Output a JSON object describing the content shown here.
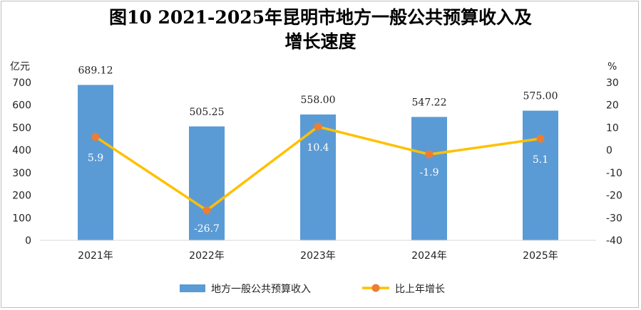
{
  "title_line1": "图10 2021-2025年昆明市地方一般公共预算收入及",
  "title_line2": "增长速度",
  "chart_data": {
    "type": "bar",
    "categories": [
      "2021年",
      "2022年",
      "2023年",
      "2024年",
      "2025年"
    ],
    "series": [
      {
        "name": "地方一般公共预算收入",
        "type": "bar",
        "axis": "left",
        "color": "#5b9bd5",
        "values": [
          689.12,
          505.25,
          558.0,
          547.22,
          575.0
        ],
        "labels": [
          "689.12",
          "505.25",
          "558.00",
          "547.22",
          "575.00"
        ]
      },
      {
        "name": "比上年增长",
        "type": "line",
        "axis": "right",
        "color": "#ffc000",
        "marker_color": "#ed7d31",
        "values": [
          5.9,
          -26.7,
          10.4,
          -1.9,
          5.1
        ],
        "labels": [
          "5.9",
          "-26.7",
          "10.4",
          "-1.9",
          "5.1"
        ]
      }
    ],
    "y_left": {
      "unit": "亿元",
      "range": [
        0,
        700
      ],
      "ticks": [
        "0",
        "100",
        "200",
        "300",
        "400",
        "500",
        "600",
        "700"
      ]
    },
    "y_right": {
      "unit": "%",
      "range": [
        -40,
        30
      ],
      "ticks": [
        "-40",
        "-30",
        "-20",
        "-10",
        "0",
        "10",
        "20",
        "30"
      ]
    },
    "grid": false,
    "legend": "bottom"
  }
}
